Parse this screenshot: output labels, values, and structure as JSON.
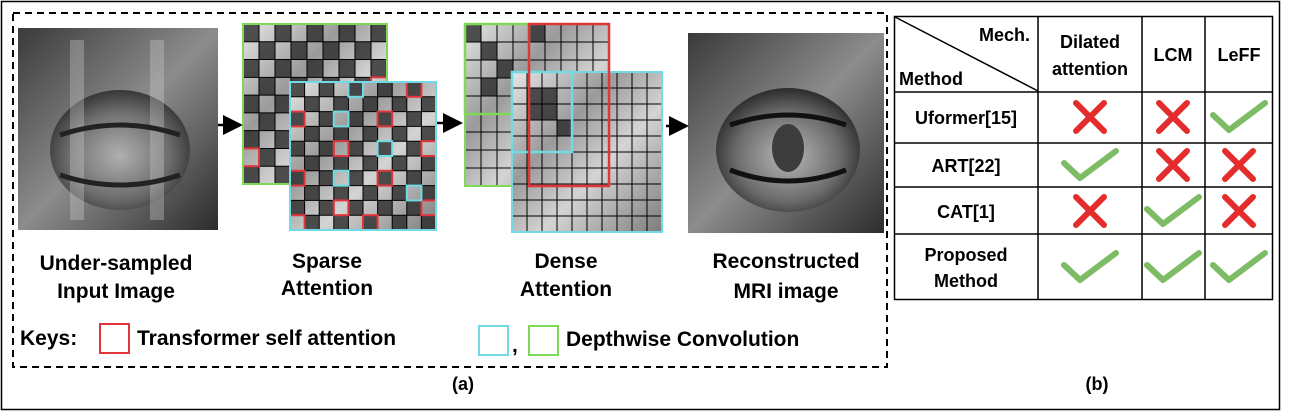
{
  "panel_a": {
    "caption": "(a)",
    "stages": {
      "input": [
        "Under-sampled",
        "Input Image"
      ],
      "sparse": [
        "Sparse",
        "Attention"
      ],
      "dense": [
        "Dense",
        "Attention"
      ],
      "output": [
        "Reconstructed",
        "MRI image"
      ]
    },
    "keys": {
      "prefix": "Keys:",
      "transformer": "Transformer self attention",
      "separator": ",",
      "depthwise": "Depthwise Convolution"
    },
    "colors": {
      "transformer": "#e0353a",
      "depthwise_cyan": "#6fdbe2",
      "depthwise_green": "#7ed957"
    }
  },
  "panel_b": {
    "caption": "(b)",
    "header": {
      "mech": "Mech.",
      "method": "Method",
      "columns": [
        [
          "Dilated",
          "attention"
        ],
        [
          "LCM"
        ],
        [
          "LeFF"
        ]
      ]
    },
    "rows": [
      {
        "name": [
          "Uformer[15]"
        ],
        "marks": [
          "cross",
          "cross",
          "check"
        ]
      },
      {
        "name": [
          "ART[22]"
        ],
        "marks": [
          "check",
          "cross",
          "cross"
        ]
      },
      {
        "name": [
          "CAT[1]"
        ],
        "marks": [
          "cross",
          "check",
          "cross"
        ]
      },
      {
        "name": [
          "Proposed",
          "Method"
        ],
        "marks": [
          "check",
          "check",
          "check"
        ]
      }
    ],
    "colors": {
      "check": "#7dbb64",
      "cross": "#e42c2c"
    }
  }
}
